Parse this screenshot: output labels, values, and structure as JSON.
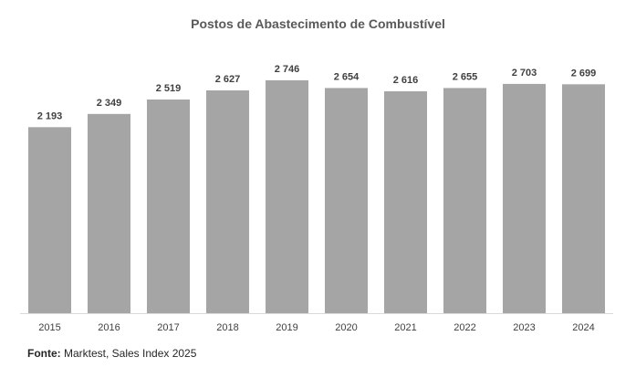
{
  "chart_data": {
    "type": "bar",
    "title": "Postos de Abastecimento de Combustível",
    "categories": [
      "2015",
      "2016",
      "2017",
      "2018",
      "2019",
      "2020",
      "2021",
      "2022",
      "2023",
      "2024"
    ],
    "values": [
      2193,
      2349,
      2519,
      2627,
      2746,
      2654,
      2616,
      2655,
      2703,
      2699
    ],
    "data_labels": [
      "2 193",
      "2 349",
      "2 519",
      "2 627",
      "2 746",
      "2 654",
      "2 616",
      "2 655",
      "2 703",
      "2 699"
    ],
    "xlabel": "",
    "ylabel": "",
    "ylim": [
      0,
      2900
    ],
    "grid": false,
    "legend": "none",
    "bar_color": "#A5A5A5"
  },
  "source": {
    "label": "Fonte:",
    "text": " Marktest, Sales Index 2025"
  }
}
